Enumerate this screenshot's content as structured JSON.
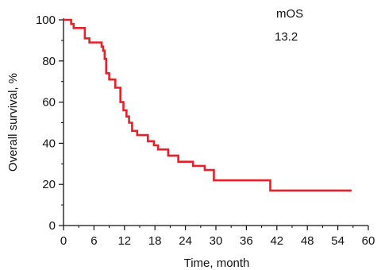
{
  "chart_data": {
    "type": "line",
    "title": "",
    "xlabel": "Time, month",
    "ylabel": "Overall survival, %",
    "xlim": [
      0,
      60
    ],
    "ylim": [
      0,
      100
    ],
    "x_ticks": [
      "0",
      "6",
      "12",
      "18",
      "24",
      "30",
      "36",
      "42",
      "48",
      "54",
      "60"
    ],
    "y_ticks": [
      "0",
      "20",
      "40",
      "60",
      "80",
      "100"
    ],
    "grid": false,
    "legend": "none",
    "line_style": "step",
    "series": [
      {
        "color": "#e8202a",
        "x": [
          0,
          1.5,
          2,
          3.5,
          4.2,
          5.1,
          7.5,
          7.8,
          8.1,
          8.4,
          9,
          10.2,
          11.2,
          11.8,
          12.4,
          12.9,
          13.5,
          14.5,
          16.6,
          17.8,
          18.6,
          20.6,
          22.6,
          25.5,
          27.8,
          29.6,
          40.7,
          56.7
        ],
        "y": [
          100,
          98,
          96,
          96,
          91,
          89,
          87,
          85,
          81,
          74,
          71,
          67,
          60,
          56,
          53,
          50,
          46,
          44,
          41,
          39,
          37,
          34,
          31,
          29,
          27,
          22,
          17,
          17
        ]
      }
    ],
    "annotations": {
      "label": "mOS",
      "value": "13.2"
    }
  }
}
